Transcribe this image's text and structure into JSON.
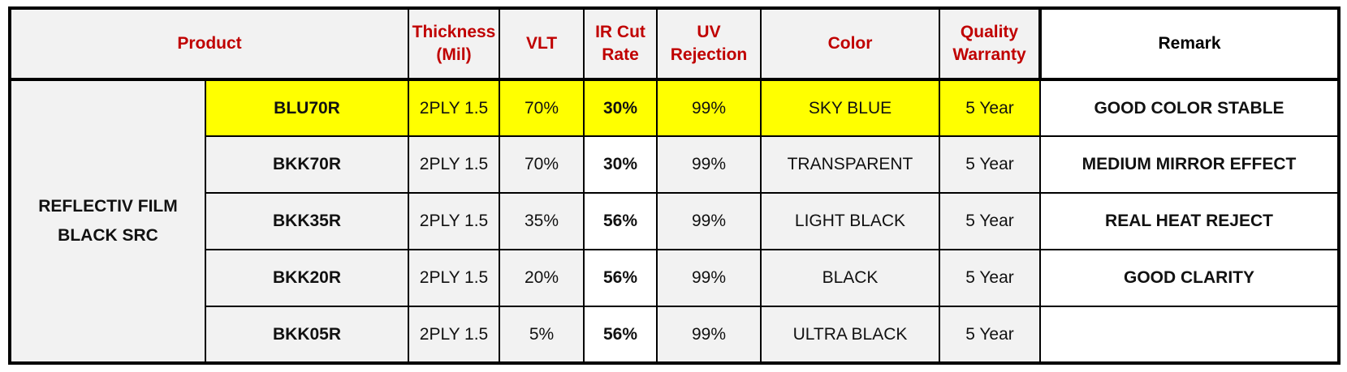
{
  "colors": {
    "header_text": "#c00000",
    "group_text": "#ff0000",
    "remark_text": "#c00000",
    "ir_text": "#a0401a",
    "highlight_row": "#ffff00",
    "cell_bg": "#f2f2f2",
    "border": "#000000"
  },
  "headers": {
    "product": "Product",
    "thickness_line1": "Thickness",
    "thickness_line2": "(Mil)",
    "vlt": "VLT",
    "ir_line1": "IR Cut",
    "ir_line2": "Rate",
    "uv_line1": "UV",
    "uv_line2": "Rejection",
    "color": "Color",
    "warranty_line1": "Quality",
    "warranty_line2": "Warranty",
    "remark": "Remark"
  },
  "group": {
    "line1": "REFLECTIV FILM",
    "line2": "BLACK SRC"
  },
  "rows": [
    {
      "model": "BLU70R",
      "thickness": "2PLY 1.5",
      "vlt": "70%",
      "ir": "30%",
      "uv": "99%",
      "color": "SKY BLUE",
      "warranty": "5 Year",
      "remark": "GOOD COLOR STABLE",
      "highlighted": true
    },
    {
      "model": "BKK70R",
      "thickness": "2PLY 1.5",
      "vlt": "70%",
      "ir": "30%",
      "uv": "99%",
      "color": "TRANSPARENT",
      "warranty": "5 Year",
      "remark": "MEDIUM MIRROR EFFECT",
      "highlighted": false
    },
    {
      "model": "BKK35R",
      "thickness": "2PLY 1.5",
      "vlt": "35%",
      "ir": "56%",
      "uv": "99%",
      "color": "LIGHT BLACK",
      "warranty": "5 Year",
      "remark": "REAL HEAT REJECT",
      "highlighted": false
    },
    {
      "model": "BKK20R",
      "thickness": "2PLY 1.5",
      "vlt": "20%",
      "ir": "56%",
      "uv": "99%",
      "color": "BLACK",
      "warranty": "5 Year",
      "remark": "GOOD CLARITY",
      "highlighted": false
    },
    {
      "model": "BKK05R",
      "thickness": "2PLY 1.5",
      "vlt": "5%",
      "ir": "56%",
      "uv": "99%",
      "color": "ULTRA BLACK",
      "warranty": "5 Year",
      "remark": "",
      "highlighted": false
    }
  ]
}
